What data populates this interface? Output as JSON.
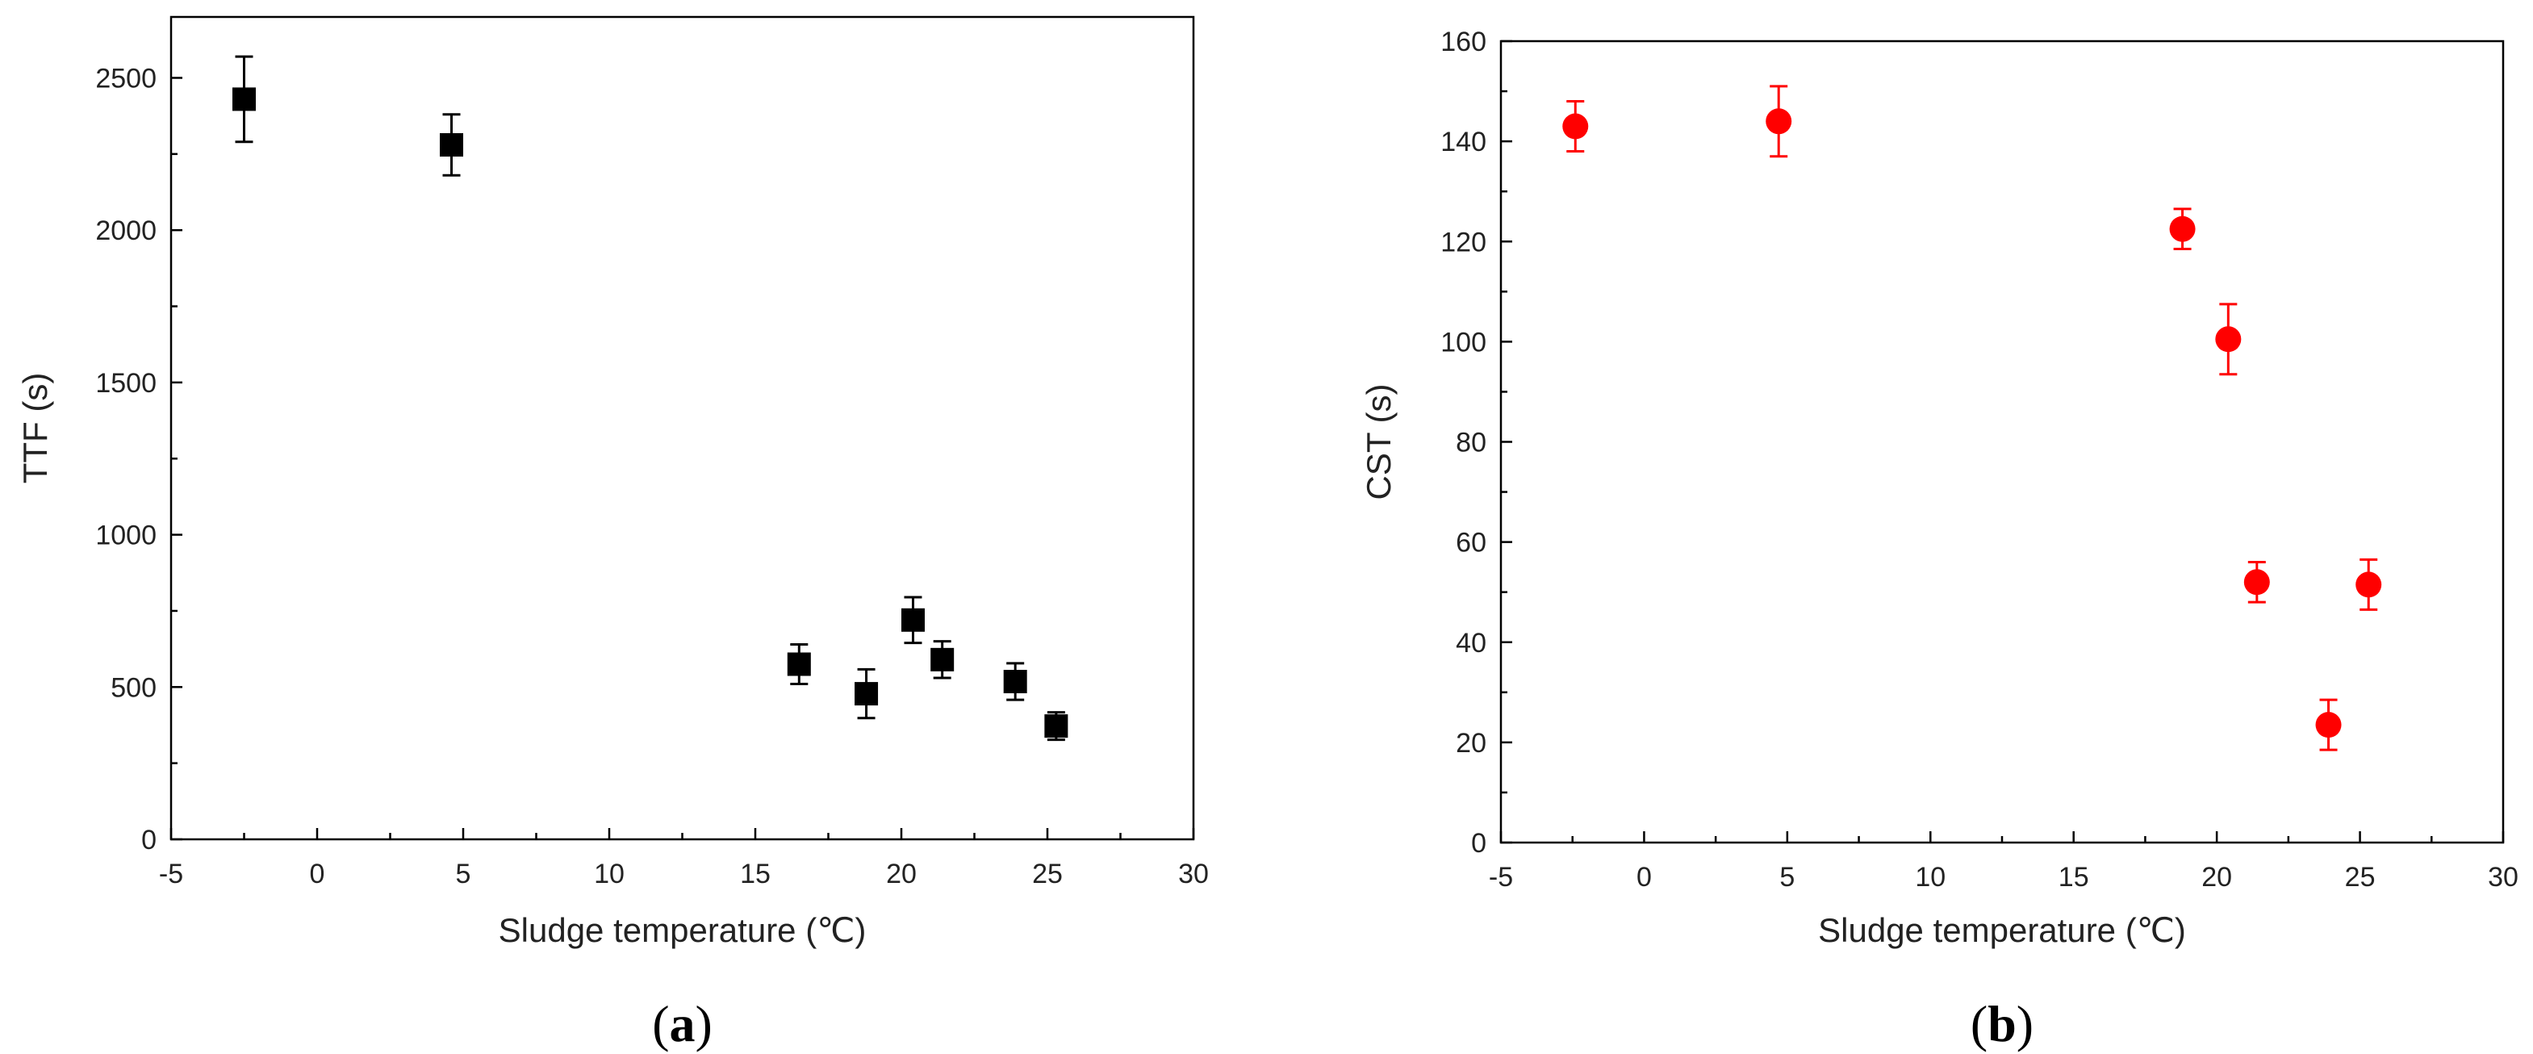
{
  "chart_data": [
    {
      "type": "scatter",
      "panel_label": "a",
      "xlabel": "Sludge temperature (℃)",
      "ylabel": "TTF (s)",
      "xlim": [
        -5,
        30
      ],
      "ylim": [
        0,
        2700
      ],
      "x_ticks": [
        -5,
        0,
        5,
        10,
        15,
        20,
        25,
        30
      ],
      "y_ticks": [
        0,
        500,
        1000,
        1500,
        2000,
        2500
      ],
      "grid": false,
      "marker": "square",
      "color": "#000000",
      "series": [
        {
          "x": [
            -2.5,
            4.6,
            16.5,
            18.8,
            20.4,
            21.4,
            23.9,
            25.3
          ],
          "y": [
            2430,
            2280,
            575,
            478,
            720,
            590,
            518,
            372
          ],
          "y_err": [
            140,
            100,
            65,
            80,
            75,
            60,
            60,
            45
          ]
        }
      ]
    },
    {
      "type": "scatter",
      "panel_label": "b",
      "xlabel": "Sludge temperature (℃)",
      "ylabel": "CST (s)",
      "xlim": [
        -5,
        30
      ],
      "ylim": [
        0,
        160
      ],
      "x_ticks": [
        -5,
        0,
        5,
        10,
        15,
        20,
        25,
        30
      ],
      "y_ticks": [
        0,
        20,
        40,
        60,
        80,
        100,
        120,
        140,
        160
      ],
      "grid": false,
      "marker": "circle",
      "color": "#ff0000",
      "series": [
        {
          "x": [
            -2.4,
            4.7,
            18.8,
            20.4,
            21.4,
            23.9,
            25.3
          ],
          "y": [
            143,
            144,
            122.5,
            100.5,
            52,
            23.5,
            51.5
          ],
          "y_err": [
            5,
            7,
            4,
            7,
            4,
            5,
            5
          ]
        }
      ]
    }
  ]
}
